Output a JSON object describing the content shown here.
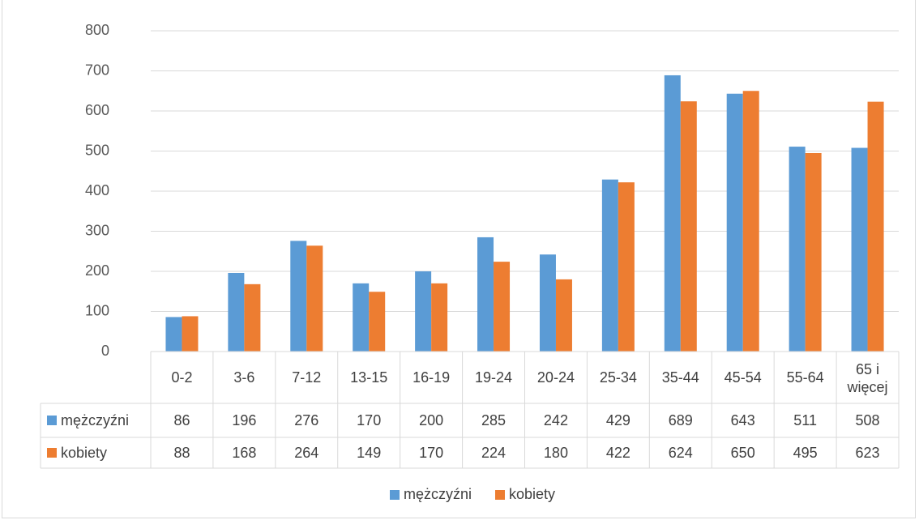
{
  "chart_data": {
    "type": "bar",
    "categories": [
      "0-2",
      "3-6",
      "7-12",
      "13-15",
      "16-19",
      "19-24",
      "20-24",
      "25-34",
      "35-44",
      "45-54",
      "55-64",
      "65 i więcej"
    ],
    "series": [
      {
        "name": "mężczyźni",
        "values": [
          86,
          196,
          276,
          170,
          200,
          285,
          242,
          429,
          689,
          643,
          511,
          508
        ],
        "color": "#5B9BD5"
      },
      {
        "name": "kobiety",
        "values": [
          88,
          168,
          264,
          149,
          170,
          224,
          180,
          422,
          624,
          650,
          495,
          623
        ],
        "color": "#ED7D31"
      }
    ],
    "ylim": [
      0,
      800
    ],
    "yticks": [
      "0",
      "100",
      "200",
      "300",
      "400",
      "500",
      "600",
      "700",
      "800"
    ],
    "grid": true,
    "data_table": true,
    "legend": "bottom-center",
    "gridline_color": "#d9d9d9"
  }
}
